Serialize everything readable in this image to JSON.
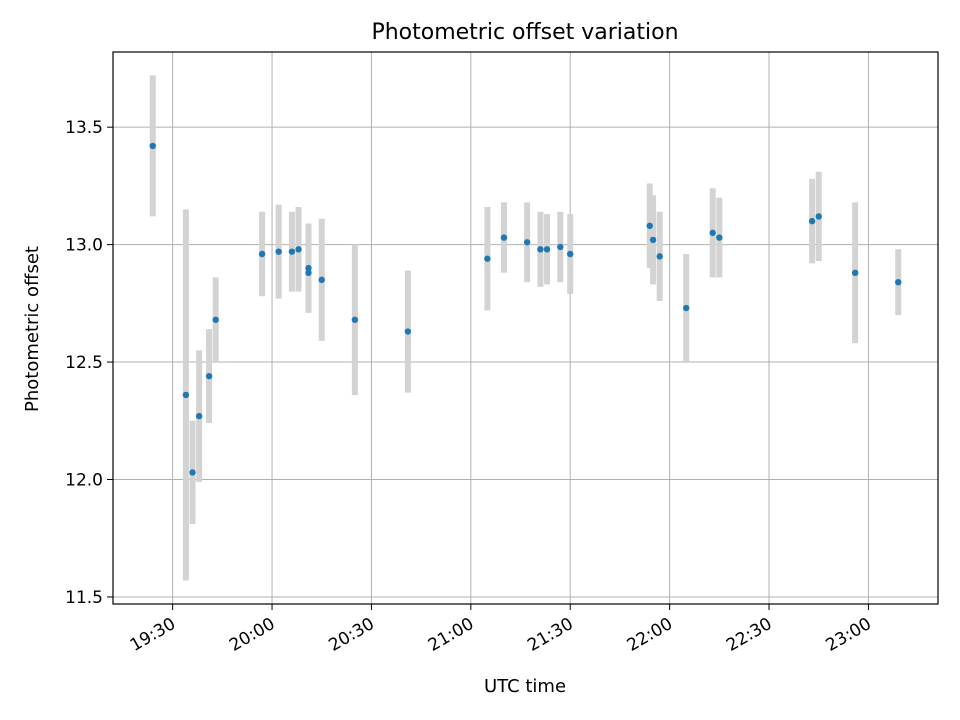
{
  "chart_data": {
    "type": "scatter",
    "title": "Photometric offset variation",
    "xlabel": "UTC time",
    "ylabel": "Photometric offset",
    "grid": true,
    "x_unit": "UTC time (HH:MM)",
    "xlim": [
      "19:12",
      "23:21"
    ],
    "ylim": [
      11.47,
      13.82
    ],
    "x_ticks": [
      "19:30",
      "20:00",
      "20:30",
      "21:00",
      "21:30",
      "22:00",
      "22:30",
      "23:00"
    ],
    "y_ticks": [
      "11.5",
      "12.0",
      "12.5",
      "13.0",
      "13.5"
    ],
    "colors": {
      "points": "#1f77b4",
      "errorbars": "#d3d3d3",
      "grid": "#b0b0b0"
    },
    "points": [
      {
        "x": "19:24",
        "y": 13.42,
        "err": 0.3
      },
      {
        "x": "19:34",
        "y": 12.36,
        "err": 0.79
      },
      {
        "x": "19:36",
        "y": 12.03,
        "err": 0.22
      },
      {
        "x": "19:38",
        "y": 12.27,
        "err": 0.28
      },
      {
        "x": "19:41",
        "y": 12.44,
        "err": 0.2
      },
      {
        "x": "19:43",
        "y": 12.68,
        "err": 0.18
      },
      {
        "x": "19:57",
        "y": 12.96,
        "err": 0.18
      },
      {
        "x": "20:02",
        "y": 12.97,
        "err": 0.2
      },
      {
        "x": "20:06",
        "y": 12.97,
        "err": 0.17
      },
      {
        "x": "20:08",
        "y": 12.98,
        "err": 0.18
      },
      {
        "x": "20:11",
        "y": 12.88,
        "err": 0.17
      },
      {
        "x": "20:11",
        "y": 12.9,
        "err": 0.19
      },
      {
        "x": "20:15",
        "y": 12.85,
        "err": 0.26
      },
      {
        "x": "20:25",
        "y": 12.68,
        "err": 0.32
      },
      {
        "x": "20:41",
        "y": 12.63,
        "err": 0.26
      },
      {
        "x": "21:05",
        "y": 12.94,
        "err": 0.22
      },
      {
        "x": "21:10",
        "y": 13.03,
        "err": 0.15
      },
      {
        "x": "21:17",
        "y": 13.01,
        "err": 0.17
      },
      {
        "x": "21:21",
        "y": 12.98,
        "err": 0.16
      },
      {
        "x": "21:23",
        "y": 12.98,
        "err": 0.15
      },
      {
        "x": "21:27",
        "y": 12.99,
        "err": 0.15
      },
      {
        "x": "21:30",
        "y": 12.96,
        "err": 0.17
      },
      {
        "x": "21:54",
        "y": 13.08,
        "err": 0.18
      },
      {
        "x": "21:55",
        "y": 13.02,
        "err": 0.19
      },
      {
        "x": "21:57",
        "y": 12.95,
        "err": 0.19
      },
      {
        "x": "22:05",
        "y": 12.73,
        "err": 0.23
      },
      {
        "x": "22:13",
        "y": 13.05,
        "err": 0.19
      },
      {
        "x": "22:15",
        "y": 13.03,
        "err": 0.17
      },
      {
        "x": "22:43",
        "y": 13.1,
        "err": 0.18
      },
      {
        "x": "22:45",
        "y": 13.12,
        "err": 0.19
      },
      {
        "x": "22:56",
        "y": 12.88,
        "err": 0.3
      },
      {
        "x": "23:09",
        "y": 12.84,
        "err": 0.14
      }
    ]
  }
}
